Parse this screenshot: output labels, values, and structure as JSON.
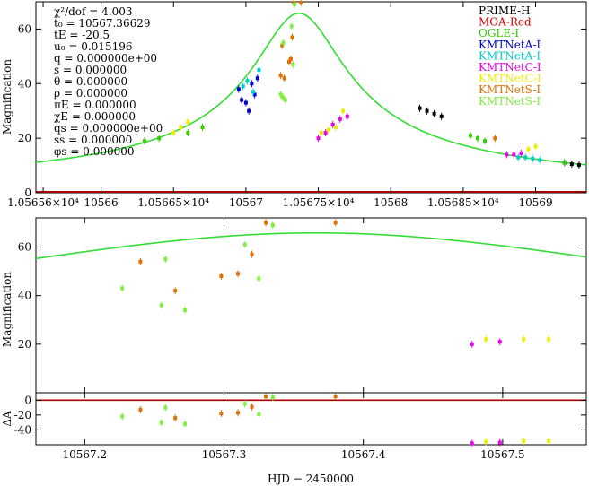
{
  "chart_data": [
    {
      "type": "scatter",
      "panel": "top",
      "ylabel": "Magnification",
      "xlim": [
        10565.55,
        10569.35
      ],
      "ylim": [
        0,
        70
      ],
      "x_ticks": [
        10565.6,
        10566.0,
        10566.5,
        10567.0,
        10567.5,
        10568.0,
        10568.5,
        10569.0
      ],
      "x_tick_labels": [
        "1.05656×10⁴",
        "10566",
        "1.05665×10⁴",
        "10567",
        "1.05675×10⁴",
        "10568",
        "1.05685×10⁴",
        "10569"
      ],
      "y_ticks": [
        0,
        20,
        40,
        60
      ],
      "y_tick_labels": [
        "0",
        "20",
        "40",
        "60"
      ],
      "params": [
        "χ²/dof = 4.003",
        "t₀ = 10567.36629",
        "tE = -20.5",
        "u₀ = 0.015196",
        "q = 0.000000e+00",
        "s = 0.000000",
        "θ = 0.000000",
        "ρ = 0.000000",
        "πE = 0.000000",
        "χE = 0.000000",
        "qs = 0.000000e+00",
        "ss = 0.000000",
        "φs = 0.000000"
      ],
      "legend": [
        {
          "name": "PRIME-H",
          "color": "#000000"
        },
        {
          "name": "MOA-Red",
          "color": "#cc0000"
        },
        {
          "name": "OGLE-I",
          "color": "#33cc00"
        },
        {
          "name": "KMTNetA-I",
          "color": "#0000cc"
        },
        {
          "name": "KMTNetA-I",
          "color": "#00cccc"
        },
        {
          "name": "KMTNetC-I",
          "color": "#ee00ee"
        },
        {
          "name": "KMTNetC-I",
          "color": "#eeee00"
        },
        {
          "name": "KMTNetS-I",
          "color": "#e07000"
        },
        {
          "name": "KMTNetS-I",
          "color": "#80ee40"
        }
      ],
      "model_color": "#33dd33",
      "baseline_color": "#aa0000",
      "series": [
        {
          "name": "PRIME-H",
          "color": "#000000",
          "x": [
            10568.2,
            10568.25,
            10568.3,
            10568.35,
            10569.2,
            10569.25,
            10569.3
          ],
          "y": [
            31,
            30,
            29,
            28,
            11,
            10.5,
            10.2
          ]
        },
        {
          "name": "OGLE-I",
          "color": "#33cc00",
          "x": [
            10566.3,
            10566.4,
            10566.6,
            10566.7,
            10568.55,
            10568.6,
            10568.65,
            10569.2
          ],
          "y": [
            19,
            20,
            22,
            24,
            21,
            20,
            19,
            11
          ]
        },
        {
          "name": "KMTNetA-I",
          "color": "#0000cc",
          "x": [
            10566.95,
            10566.97,
            10567.0,
            10567.02,
            10567.04,
            10567.06,
            10567.08
          ],
          "y": [
            38,
            34,
            33,
            30,
            40,
            36,
            42
          ]
        },
        {
          "name": "KMTNetA-I",
          "color": "#00cccc",
          "x": [
            10566.98,
            10567.01,
            10567.05,
            10567.09,
            10568.88,
            10568.93,
            10568.98,
            10569.03
          ],
          "y": [
            39,
            41,
            37,
            45,
            13,
            13,
            12.5,
            12
          ]
        },
        {
          "name": "KMTNetC-I",
          "color": "#ee00ee",
          "x": [
            10567.5,
            10567.55,
            10567.6,
            10567.65,
            10567.7,
            10568.8,
            10568.85,
            10568.9
          ],
          "y": [
            20,
            22,
            25,
            27,
            28,
            14,
            14,
            14.5
          ]
        },
        {
          "name": "KMTNetC-I",
          "color": "#eeee00",
          "x": [
            10566.5,
            10566.55,
            10566.6,
            10567.52,
            10567.57,
            10567.62,
            10567.67,
            10568.95,
            10569.0
          ],
          "y": [
            22,
            24,
            26,
            22,
            23,
            24,
            30,
            16,
            17
          ]
        },
        {
          "name": "KMTNetS-I",
          "color": "#e07000",
          "x": [
            10567.24,
            10567.25,
            10567.265,
            10567.298,
            10567.31,
            10567.32,
            10567.33,
            10567.38,
            10568.72
          ],
          "y": [
            43,
            54,
            42,
            48,
            49,
            57,
            70,
            70,
            20
          ]
        },
        {
          "name": "KMTNetS-I",
          "color": "#80ee40",
          "x": [
            10567.24,
            10567.255,
            10567.258,
            10567.272,
            10567.315,
            10567.325,
            10567.335
          ],
          "y": [
            36,
            35,
            55,
            34,
            61,
            47,
            69
          ]
        }
      ]
    },
    {
      "type": "scatter",
      "panel": "middle",
      "ylabel": "Magnification",
      "xlim": [
        10567.165,
        10567.56
      ],
      "ylim": [
        0,
        72
      ],
      "y_ticks": [
        20,
        40,
        60
      ],
      "y_tick_labels": [
        "20",
        "40",
        "60"
      ],
      "model_color": "#33dd33",
      "series": [
        {
          "name": "KMTNetS-I",
          "color": "#e07000",
          "x": [
            10567.24,
            10567.265,
            10567.298,
            10567.31,
            10567.32,
            10567.33,
            10567.38
          ],
          "y": [
            54,
            42,
            48,
            49,
            57,
            70,
            70
          ]
        },
        {
          "name": "KMTNetS-I",
          "color": "#80ee40",
          "x": [
            10567.227,
            10567.255,
            10567.258,
            10567.272,
            10567.315,
            10567.325,
            10567.335
          ],
          "y": [
            43,
            36,
            55,
            34,
            61,
            47,
            69
          ]
        },
        {
          "name": "KMTNetC-I",
          "color": "#ee00ee",
          "x": [
            10567.478,
            10567.498
          ],
          "y": [
            20,
            21
          ]
        },
        {
          "name": "KMTNetC-I",
          "color": "#eeee00",
          "x": [
            10567.488,
            10567.515,
            10567.533
          ],
          "y": [
            22,
            22,
            22
          ]
        }
      ]
    },
    {
      "type": "scatter",
      "panel": "residual",
      "ylabel": "ΔA",
      "xlabel": "HJD − 2450000",
      "xlim": [
        10567.165,
        10567.56
      ],
      "ylim": [
        -60,
        10
      ],
      "x_ticks": [
        10567.2,
        10567.3,
        10567.4,
        10567.5
      ],
      "x_tick_labels": [
        "10567.2",
        "10567.3",
        "10567.4",
        "10567.5"
      ],
      "y_ticks": [
        -40,
        -20,
        0
      ],
      "y_tick_labels": [
        "-40",
        "-20",
        "0"
      ],
      "series": [
        {
          "name": "KMTNetS-I",
          "color": "#e07000",
          "x": [
            10567.24,
            10567.265,
            10567.298,
            10567.31,
            10567.32,
            10567.33,
            10567.38
          ],
          "y": [
            -13,
            -24,
            -18,
            -17,
            -9,
            5,
            5
          ]
        },
        {
          "name": "KMTNetS-I",
          "color": "#80ee40",
          "x": [
            10567.227,
            10567.255,
            10567.258,
            10567.272,
            10567.315,
            10567.325,
            10567.335
          ],
          "y": [
            -22,
            -30,
            -10,
            -32,
            -5,
            -19,
            4
          ]
        },
        {
          "name": "KMTNetC-I",
          "color": "#ee00ee",
          "x": [
            10567.478,
            10567.498
          ],
          "y": [
            -58,
            -57
          ]
        },
        {
          "name": "KMTNetC-I",
          "color": "#eeee00",
          "x": [
            10567.488,
            10567.515,
            10567.533
          ],
          "y": [
            -56,
            -55,
            -55
          ]
        }
      ]
    }
  ]
}
